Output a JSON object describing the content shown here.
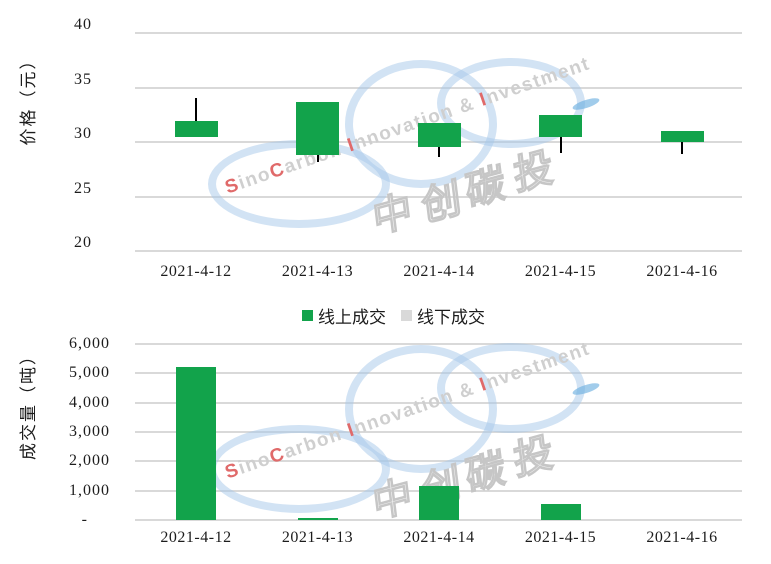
{
  "colors": {
    "green": "#12a34b",
    "gray_series": "#d9d9d9",
    "gridline": "#d9d9d9",
    "wick": "#000000",
    "text": "#1c1c1c",
    "wm_ring": "rgba(166,200,233,0.50)",
    "wm_text": "#cfcfcf",
    "wm_red": "#e06a6a",
    "wm_blue": "#6fb0e0"
  },
  "legend": {
    "position": "between-charts",
    "items": [
      {
        "label": "线上成交",
        "color": "#12a34b"
      },
      {
        "label": "线下成交",
        "color": "#d9d9d9"
      }
    ]
  },
  "watermark": {
    "en_text": "SinoCarbon Innovation & Investment",
    "en_parts": [
      {
        "text": "S",
        "color": "red"
      },
      {
        "text": "ino",
        "color": "gray"
      },
      {
        "text": "C",
        "color": "red"
      },
      {
        "text": "arbon ",
        "color": "gray"
      },
      {
        "text": "I",
        "color": "red"
      },
      {
        "text": "nnovation & ",
        "color": "gray"
      },
      {
        "text": "I",
        "color": "red"
      },
      {
        "text": "nvestment",
        "color": "gray"
      }
    ],
    "cn_text": "中创碳投"
  },
  "chart_data": [
    {
      "type": "candlestick",
      "ylabel": "价格（元）",
      "categories": [
        "2021-4-12",
        "2021-4-13",
        "2021-4-14",
        "2021-4-15",
        "2021-4-16"
      ],
      "ylim": [
        20,
        40
      ],
      "grid": true,
      "yticks": [
        {
          "label": "40",
          "value": 40
        },
        {
          "label": "35",
          "value": 35
        },
        {
          "label": "30",
          "value": 30
        },
        {
          "label": "25",
          "value": 25
        },
        {
          "label": "20",
          "value": 20
        }
      ],
      "series": [
        {
          "name": "线上成交",
          "points": [
            {
              "date": "2021-4-12",
              "high": 34.0,
              "body_top": 31.9,
              "body_bottom": 30.5,
              "low": 30.5
            },
            {
              "date": "2021-4-13",
              "high": 33.7,
              "body_top": 33.7,
              "body_bottom": 28.8,
              "low": 28.2
            },
            {
              "date": "2021-4-14",
              "high": 31.7,
              "body_top": 31.7,
              "body_bottom": 29.5,
              "low": 28.6
            },
            {
              "date": "2021-4-15",
              "high": 32.5,
              "body_top": 32.5,
              "body_bottom": 30.5,
              "low": 29.0
            },
            {
              "date": "2021-4-16",
              "high": 31.0,
              "body_top": 31.0,
              "body_bottom": 30.0,
              "low": 28.9
            }
          ]
        }
      ]
    },
    {
      "type": "bar",
      "ylabel": "成交量（吨）",
      "categories": [
        "2021-4-12",
        "2021-4-13",
        "2021-4-14",
        "2021-4-15",
        "2021-4-16"
      ],
      "ylim": [
        0,
        6000
      ],
      "grid": true,
      "yticks": [
        {
          "label": "6,000",
          "value": 6000
        },
        {
          "label": "5,000",
          "value": 5000
        },
        {
          "label": "4,000",
          "value": 4000
        },
        {
          "label": "3,000",
          "value": 3000
        },
        {
          "label": "2,000",
          "value": 2000
        },
        {
          "label": "1,000",
          "value": 1000
        },
        {
          "label": "-",
          "value": 0
        }
      ],
      "series": [
        {
          "name": "线上成交",
          "values": [
            5200,
            60,
            1170,
            550,
            0
          ]
        }
      ]
    }
  ]
}
